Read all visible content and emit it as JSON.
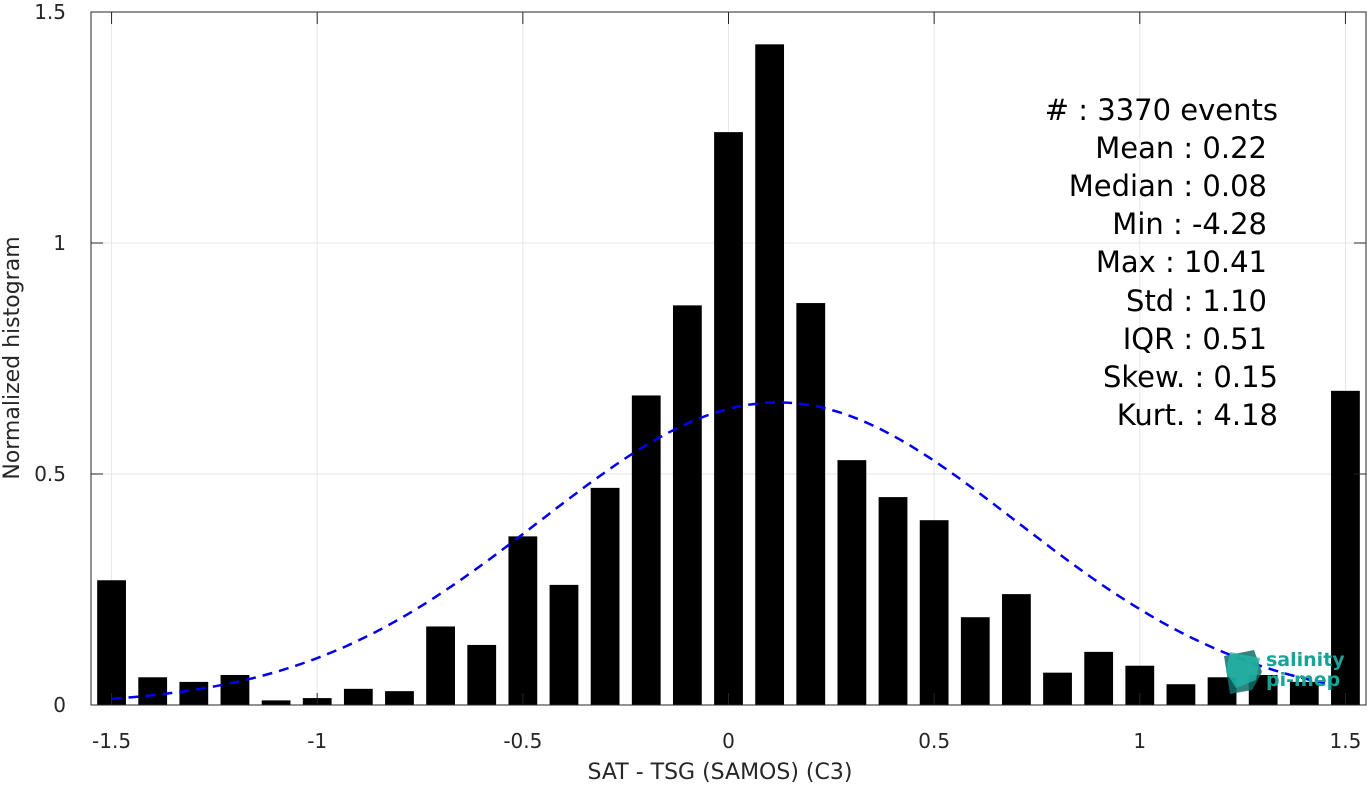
{
  "chart_data": {
    "type": "bar",
    "xlabel": "SAT - TSG (SAMOS) (C3)",
    "ylabel": "Normalized histogram",
    "xlim": [
      -1.55,
      1.55
    ],
    "ylim": [
      0,
      1.5
    ],
    "xticks": [
      -1.5,
      -1,
      -0.5,
      0,
      0.5,
      1,
      1.5
    ],
    "xtick_labels": [
      "-1.5",
      "-1",
      "-0.5",
      "0",
      "0.5",
      "1",
      "1.5"
    ],
    "yticks": [
      0,
      0.5,
      1,
      1.5
    ],
    "ytick_labels": [
      "0",
      "0.5",
      "1",
      "1.5"
    ],
    "grid": true,
    "bin_width": 0.1,
    "bar_color": "#000000",
    "x": [
      -1.5,
      -1.4,
      -1.3,
      -1.2,
      -1.1,
      -1.0,
      -0.9,
      -0.8,
      -0.7,
      -0.6,
      -0.5,
      -0.4,
      -0.3,
      -0.2,
      -0.1,
      0.0,
      0.1,
      0.2,
      0.3,
      0.4,
      0.5,
      0.6,
      0.7,
      0.8,
      0.9,
      1.0,
      1.1,
      1.2,
      1.3,
      1.4,
      1.5
    ],
    "values": [
      0.27,
      0.06,
      0.05,
      0.065,
      0.01,
      0.015,
      0.035,
      0.03,
      0.17,
      0.13,
      0.365,
      0.26,
      0.47,
      0.67,
      0.865,
      1.24,
      1.43,
      0.87,
      0.53,
      0.45,
      0.4,
      0.19,
      0.24,
      0.07,
      0.115,
      0.085,
      0.045,
      0.06,
      0.065,
      0.05,
      0.68
    ],
    "fit_curve": {
      "style": "dashed",
      "color": "#0000ee",
      "mean": 0.12,
      "std": 0.58,
      "peak": 0.655,
      "x_range": [
        -1.5,
        1.45
      ]
    },
    "stats": {
      "lines": [
        "#  : 3370 events",
        "Mean : 0.22",
        "Median : 0.08",
        "Min : -4.28",
        "Max : 10.41",
        "Std : 1.10",
        "IQR : 0.51",
        "Skew. : 0.15",
        "Kurt. : 4.18"
      ]
    }
  },
  "logo": {
    "line1": "salinity",
    "line2": "pi-mep"
  }
}
